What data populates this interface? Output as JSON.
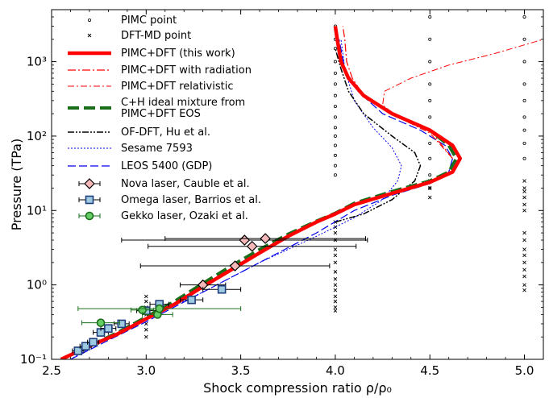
{
  "chart_data": {
    "type": "line",
    "xlabel": "Shock compression ratio ρ/ρ₀",
    "ylabel": "Pressure (TPa)",
    "xlim": [
      2.5,
      5.1
    ],
    "ylim": [
      0.1,
      5000
    ],
    "yscale": "log",
    "xticks": [
      "2.5",
      "3.0",
      "3.5",
      "4.0",
      "4.5",
      "5.0"
    ],
    "xtick_values": [
      2.5,
      3.0,
      3.5,
      4.0,
      4.5,
      5.0
    ],
    "yticks": [
      "10⁻¹",
      "10⁰",
      "10¹",
      "10²",
      "10³"
    ],
    "ytick_values": [
      0.1,
      1,
      10,
      100,
      1000
    ],
    "legend_position": "top-left",
    "series": [
      {
        "name": "PIMC point",
        "style": "circle-marker",
        "color": "#000000",
        "points": [
          [
            4.0,
            3000
          ],
          [
            4.0,
            2000
          ],
          [
            4.0,
            1500
          ],
          [
            4.0,
            1000
          ],
          [
            4.0,
            700
          ],
          [
            4.0,
            500
          ],
          [
            4.0,
            350
          ],
          [
            4.0,
            250
          ],
          [
            4.0,
            180
          ],
          [
            4.0,
            130
          ],
          [
            4.0,
            100
          ],
          [
            4.0,
            75
          ],
          [
            4.0,
            55
          ],
          [
            4.0,
            40
          ],
          [
            4.0,
            30
          ],
          [
            4.5,
            4000
          ],
          [
            4.5,
            2000
          ],
          [
            4.5,
            1000
          ],
          [
            4.5,
            500
          ],
          [
            4.5,
            300
          ],
          [
            4.5,
            180
          ],
          [
            4.5,
            120
          ],
          [
            4.5,
            80
          ],
          [
            4.5,
            50
          ],
          [
            4.5,
            30
          ],
          [
            4.5,
            20
          ],
          [
            5.0,
            4000
          ],
          [
            5.0,
            2000
          ],
          [
            5.0,
            1000
          ],
          [
            5.0,
            500
          ],
          [
            5.0,
            300
          ],
          [
            5.0,
            180
          ],
          [
            5.0,
            120
          ],
          [
            5.0,
            80
          ],
          [
            5.0,
            50
          ]
        ]
      },
      {
        "name": "DFT-MD point",
        "style": "x-marker",
        "color": "#000000",
        "points": [
          [
            3.0,
            0.2
          ],
          [
            3.0,
            0.25
          ],
          [
            3.0,
            0.3
          ],
          [
            3.0,
            0.4
          ],
          [
            3.0,
            0.5
          ],
          [
            3.0,
            0.6
          ],
          [
            3.0,
            0.7
          ],
          [
            4.0,
            0.45
          ],
          [
            4.0,
            0.5
          ],
          [
            4.0,
            0.6
          ],
          [
            4.0,
            0.7
          ],
          [
            4.0,
            0.85
          ],
          [
            4.0,
            1.0
          ],
          [
            4.0,
            1.2
          ],
          [
            4.0,
            1.5
          ],
          [
            4.0,
            2.0
          ],
          [
            4.0,
            2.5
          ],
          [
            4.0,
            3.0
          ],
          [
            4.0,
            4.0
          ],
          [
            4.0,
            5.0
          ],
          [
            4.0,
            6.0
          ],
          [
            4.0,
            7.0
          ],
          [
            4.5,
            15
          ],
          [
            4.5,
            20
          ],
          [
            4.5,
            25
          ],
          [
            5.0,
            0.85
          ],
          [
            5.0,
            1.0
          ],
          [
            5.0,
            1.3
          ],
          [
            5.0,
            1.6
          ],
          [
            5.0,
            2.0
          ],
          [
            5.0,
            2.5
          ],
          [
            5.0,
            3.0
          ],
          [
            5.0,
            4.0
          ],
          [
            5.0,
            5.0
          ],
          [
            5.0,
            10
          ],
          [
            5.0,
            12
          ],
          [
            5.0,
            15
          ],
          [
            5.0,
            18
          ],
          [
            5.0,
            20
          ],
          [
            5.0,
            25
          ]
        ]
      },
      {
        "name": "PIMC+DFT (this work)",
        "style": "thick-solid",
        "color": "#ff0000",
        "points": [
          [
            2.55,
            0.1
          ],
          [
            2.7,
            0.15
          ],
          [
            2.85,
            0.22
          ],
          [
            3.0,
            0.35
          ],
          [
            3.15,
            0.55
          ],
          [
            3.3,
            0.95
          ],
          [
            3.45,
            1.6
          ],
          [
            3.6,
            2.7
          ],
          [
            3.75,
            4.5
          ],
          [
            3.9,
            7
          ],
          [
            4.0,
            9
          ],
          [
            4.1,
            12
          ],
          [
            4.3,
            17
          ],
          [
            4.5,
            24
          ],
          [
            4.62,
            33
          ],
          [
            4.66,
            50
          ],
          [
            4.62,
            75
          ],
          [
            4.5,
            120
          ],
          [
            4.3,
            200
          ],
          [
            4.15,
            350
          ],
          [
            4.07,
            600
          ],
          [
            4.03,
            1000
          ],
          [
            4.01,
            2000
          ],
          [
            4.0,
            3000
          ]
        ]
      },
      {
        "name": "PIMC+DFT with radiation",
        "style": "dash-dot",
        "color": "#ff0000",
        "points": [
          [
            4.62,
            50
          ],
          [
            4.5,
            120
          ],
          [
            4.3,
            200
          ],
          [
            4.15,
            350
          ],
          [
            4.09,
            600
          ],
          [
            4.06,
            1000
          ],
          [
            4.05,
            2000
          ],
          [
            4.04,
            3000
          ]
        ]
      },
      {
        "name": "PIMC+DFT relativistic",
        "style": "dash-dot-thin",
        "color": "#ff0000",
        "points": [
          [
            4.62,
            50
          ],
          [
            4.5,
            110
          ],
          [
            4.35,
            170
          ],
          [
            4.25,
            260
          ],
          [
            4.26,
            400
          ],
          [
            4.4,
            600
          ],
          [
            4.6,
            900
          ],
          [
            4.85,
            1300
          ],
          [
            5.1,
            2000
          ]
        ]
      },
      {
        "name": "C+H ideal mixture from PIMC+DFT EOS",
        "style": "thick-dash",
        "color": "#1a6e1a",
        "points": [
          [
            2.55,
            0.1
          ],
          [
            2.7,
            0.15
          ],
          [
            2.85,
            0.23
          ],
          [
            3.0,
            0.37
          ],
          [
            3.15,
            0.6
          ],
          [
            3.3,
            1.05
          ],
          [
            3.45,
            1.8
          ],
          [
            3.6,
            3.0
          ],
          [
            3.75,
            4.8
          ],
          [
            3.9,
            7.2
          ],
          [
            4.0,
            9.2
          ],
          [
            4.1,
            12.5
          ],
          [
            4.3,
            18
          ],
          [
            4.5,
            25
          ],
          [
            4.6,
            33
          ],
          [
            4.64,
            50
          ],
          [
            4.6,
            75
          ],
          [
            4.5,
            120
          ],
          [
            4.3,
            200
          ],
          [
            4.15,
            350
          ],
          [
            4.07,
            600
          ],
          [
            4.03,
            1000
          ],
          [
            4.01,
            2000
          ],
          [
            4.0,
            3000
          ]
        ]
      },
      {
        "name": "OF-DFT, Hu et al.",
        "style": "dash-dot-dot",
        "color": "#000000",
        "points": [
          [
            4.0,
            7
          ],
          [
            4.15,
            9
          ],
          [
            4.3,
            14
          ],
          [
            4.42,
            25
          ],
          [
            4.45,
            40
          ],
          [
            4.42,
            60
          ],
          [
            4.3,
            100
          ],
          [
            4.15,
            200
          ],
          [
            4.07,
            400
          ],
          [
            4.03,
            800
          ],
          [
            4.0,
            1500
          ]
        ]
      },
      {
        "name": "Sesame 7593",
        "style": "dotted",
        "color": "#0000ee",
        "points": [
          [
            2.6,
            0.1
          ],
          [
            2.8,
            0.2
          ],
          [
            3.0,
            0.35
          ],
          [
            3.3,
            0.8
          ],
          [
            3.6,
            2.0
          ],
          [
            3.9,
            4.5
          ],
          [
            4.1,
            8
          ],
          [
            4.25,
            14
          ],
          [
            4.33,
            25
          ],
          [
            4.35,
            40
          ],
          [
            4.3,
            70
          ],
          [
            4.2,
            130
          ],
          [
            4.1,
            300
          ],
          [
            4.05,
            800
          ],
          [
            4.03,
            2000
          ]
        ]
      },
      {
        "name": "LEOS 5400 (GDP)",
        "style": "dashed",
        "color": "#0000ee",
        "points": [
          [
            2.6,
            0.1
          ],
          [
            2.8,
            0.18
          ],
          [
            3.0,
            0.32
          ],
          [
            3.3,
            0.8
          ],
          [
            3.6,
            2.0
          ],
          [
            3.9,
            5
          ],
          [
            4.1,
            10
          ],
          [
            4.3,
            16
          ],
          [
            4.5,
            23
          ],
          [
            4.6,
            33
          ],
          [
            4.62,
            50
          ],
          [
            4.58,
            75
          ],
          [
            4.45,
            120
          ],
          [
            4.25,
            200
          ],
          [
            4.12,
            400
          ],
          [
            4.05,
            800
          ],
          [
            4.02,
            2000
          ]
        ]
      }
    ],
    "experiments": [
      {
        "name": "Nova laser, Cauble et al.",
        "marker": "diamond",
        "fill": "#f5b7b7",
        "stroke": "#000000",
        "points": [
          {
            "x": 3.3,
            "y": 1.0,
            "xerr": 0.12
          },
          {
            "x": 3.47,
            "y": 1.8,
            "xerr": 0.5
          },
          {
            "x": 3.52,
            "y": 4.0,
            "xerr": 0.65
          },
          {
            "x": 3.56,
            "y": 3.3,
            "xerr": 0.55
          },
          {
            "x": 3.63,
            "y": 4.2,
            "xerr": 0.53
          }
        ]
      },
      {
        "name": "Omega laser, Barrios et al.",
        "marker": "square",
        "fill": "#9ecae1",
        "stroke": "#000000",
        "points": [
          {
            "x": 2.64,
            "y": 0.13,
            "xerr": 0.03
          },
          {
            "x": 2.68,
            "y": 0.15,
            "xerr": 0.03
          },
          {
            "x": 2.72,
            "y": 0.17,
            "xerr": 0.03
          },
          {
            "x": 2.76,
            "y": 0.23,
            "xerr": 0.04
          },
          {
            "x": 2.8,
            "y": 0.26,
            "xerr": 0.04
          },
          {
            "x": 2.87,
            "y": 0.3,
            "xerr": 0.04
          },
          {
            "x": 3.0,
            "y": 0.45,
            "xerr": 0.05
          },
          {
            "x": 3.07,
            "y": 0.55,
            "xerr": 0.05
          },
          {
            "x": 3.24,
            "y": 0.63,
            "xerr": 0.06
          },
          {
            "x": 3.4,
            "y": 0.87,
            "xerr": 0.1
          }
        ]
      },
      {
        "name": "Gekko laser, Ozaki et al.",
        "marker": "circle",
        "fill": "#66cc66",
        "stroke": "#1a6e1a",
        "points": [
          {
            "x": 2.76,
            "y": 0.31,
            "xerr": 0.1
          },
          {
            "x": 2.98,
            "y": 0.46,
            "xerr": 0.06
          },
          {
            "x": 3.06,
            "y": 0.4,
            "xerr": 0.08
          },
          {
            "x": 3.07,
            "y": 0.48,
            "xerr": 0.43
          }
        ]
      }
    ]
  },
  "legend": {
    "items": [
      "PIMC point",
      "DFT-MD point",
      "PIMC+DFT (this work)",
      "PIMC+DFT with radiation",
      "PIMC+DFT relativistic",
      "C+H ideal mixture from",
      "PIMC+DFT EOS",
      "OF-DFT, Hu et al.",
      "Sesame 7593",
      "LEOS 5400 (GDP)",
      "Nova laser, Cauble et al.",
      "Omega laser, Barrios et al.",
      "Gekko laser, Ozaki et al."
    ]
  }
}
